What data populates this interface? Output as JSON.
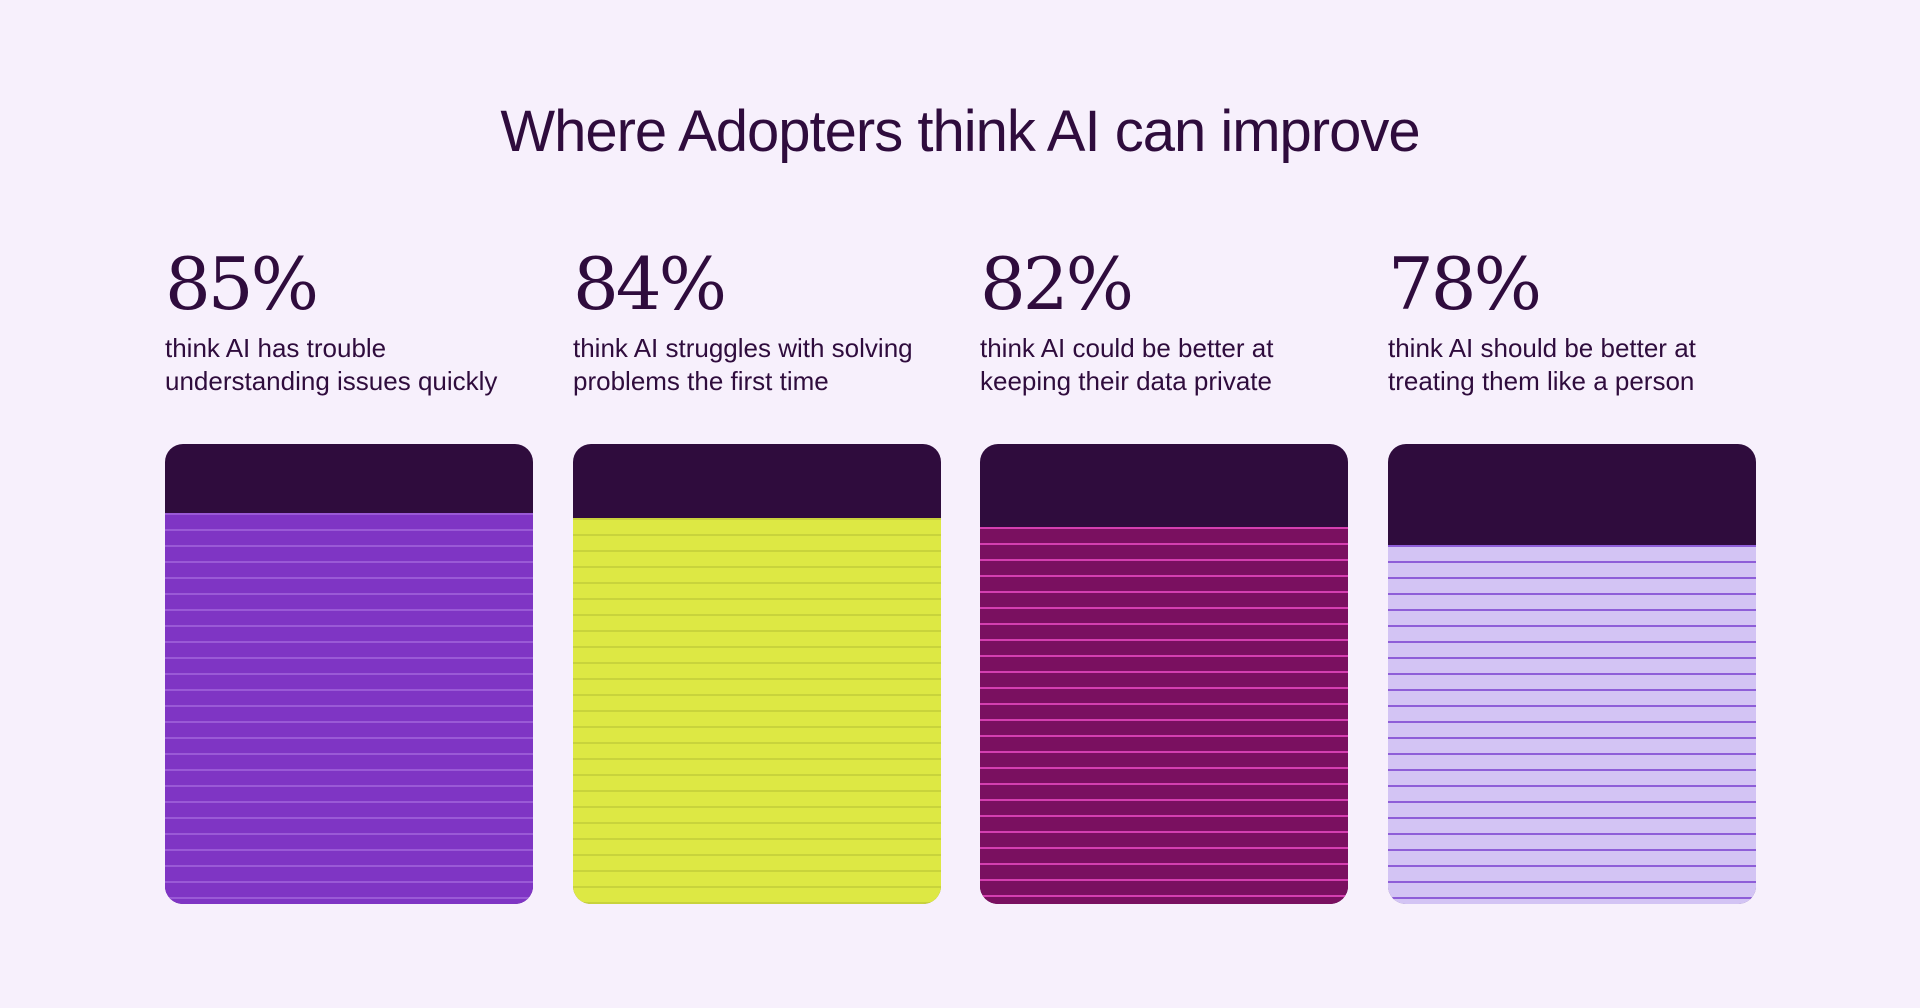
{
  "chart_data": {
    "type": "bar",
    "title": "Where Adopters think AI can improve",
    "unit": "%",
    "ylim": [
      0,
      100
    ],
    "items": [
      {
        "value": 85,
        "label": "85%",
        "line1": "think AI has trouble",
        "line2": "understanding issues quickly",
        "color": "#7f35c4",
        "line_color": "#9a5ad6"
      },
      {
        "value": 84,
        "label": "84%",
        "line1": "think AI struggles with solving",
        "line2": "problems the first time",
        "color": "#dde844",
        "line_color": "#c8d33c"
      },
      {
        "value": 82,
        "label": "82%",
        "line1": "think AI could be better at",
        "line2": "keeping their data private",
        "color": "#7a1060",
        "line_color": "#d43fb0"
      },
      {
        "value": 78,
        "label": "78%",
        "line1": "think AI should be better at",
        "line2": "treating them like a person",
        "color": "#d3c4f4",
        "line_color": "#8e5ed8"
      }
    ],
    "background_color": "#2f0c3d",
    "grid": false
  }
}
